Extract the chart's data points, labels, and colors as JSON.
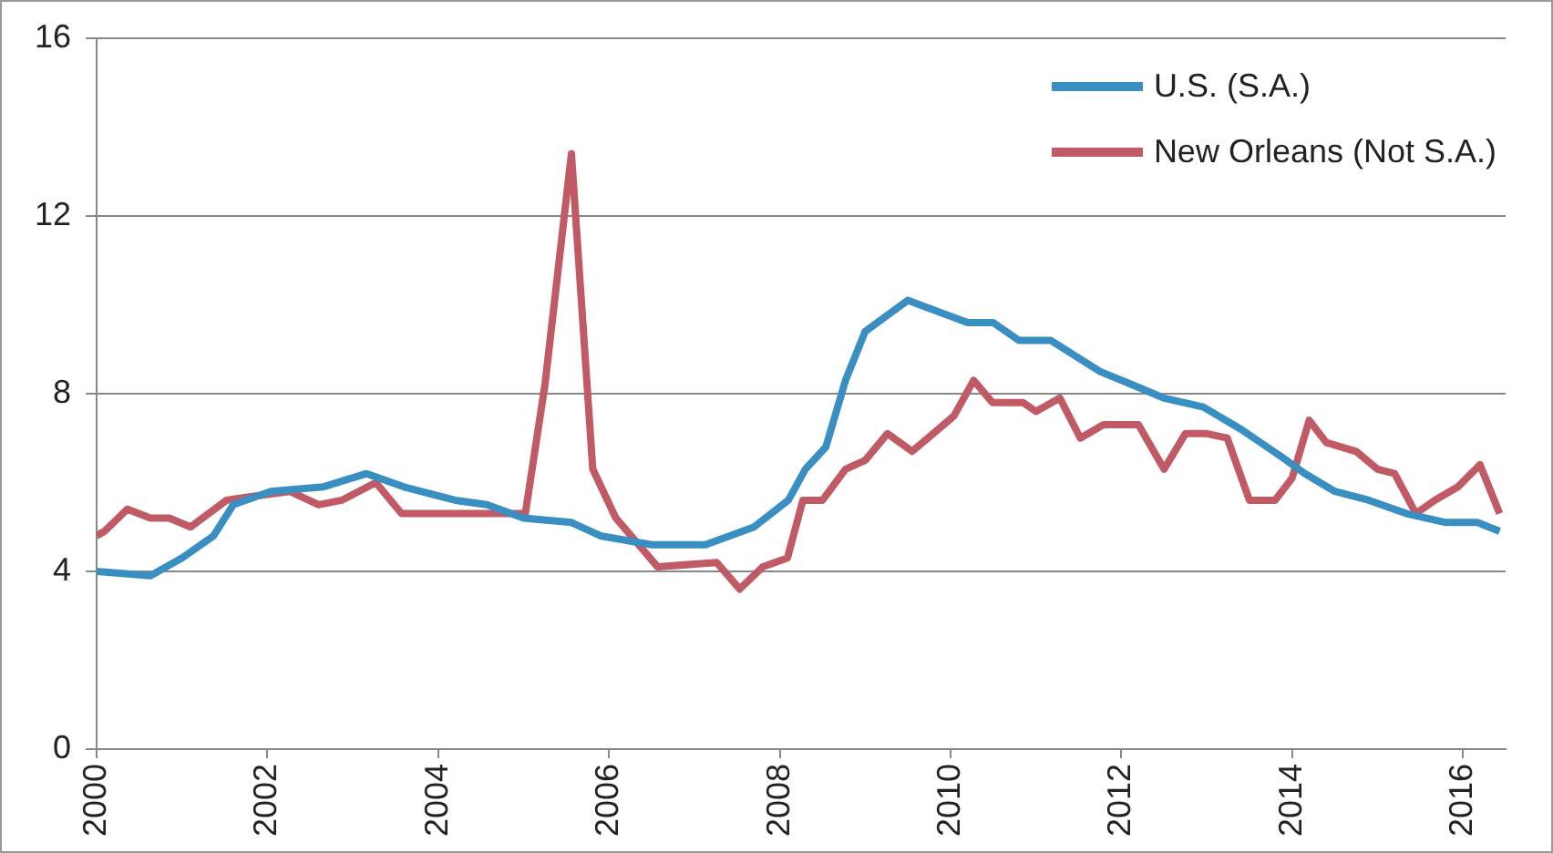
{
  "chart_data": {
    "type": "line",
    "xlim": [
      2000,
      2016.5
    ],
    "xticks": [
      2000,
      2002,
      2004,
      2006,
      2008,
      2010,
      2012,
      2014,
      2016
    ],
    "ylim": [
      0,
      16
    ],
    "yticks": [
      0,
      4,
      8,
      12,
      16
    ],
    "grid": "y",
    "legend": "top right",
    "marker": "none",
    "line_style": "solid",
    "series": [
      {
        "name": "U.S. (S.A.)",
        "color": "#3a8fc2",
        "x": [
          2000,
          2000.63,
          2001,
          2001.37,
          2001.6,
          2002.04,
          2002.65,
          2003.16,
          2003.6,
          2004.2,
          2004.57,
          2005,
          2005.56,
          2005.9,
          2006.5,
          2007.13,
          2007.7,
          2008.1,
          2008.3,
          2008.54,
          2008.77,
          2009,
          2009.5,
          2010.2,
          2010.5,
          2010.8,
          2011.17,
          2011.75,
          2012.13,
          2012.5,
          2012.96,
          2013.4,
          2013.86,
          2014.15,
          2014.5,
          2014.9,
          2015.34,
          2015.8,
          2016.17,
          2016.43
        ],
        "values": [
          4.0,
          3.9,
          4.3,
          4.8,
          5.5,
          5.8,
          5.9,
          6.2,
          5.9,
          5.6,
          5.5,
          5.2,
          5.1,
          4.8,
          4.6,
          4.6,
          5.0,
          5.6,
          6.3,
          6.8,
          8.3,
          9.4,
          10.1,
          9.6,
          9.6,
          9.2,
          9.2,
          8.5,
          8.2,
          7.9,
          7.7,
          7.2,
          6.6,
          6.2,
          5.8,
          5.6,
          5.3,
          5.1,
          5.1,
          4.9
        ]
      },
      {
        "name": "New Orleans (Not S.A.)",
        "color": "#c05a64",
        "x": [
          2000,
          2000.09,
          2000.36,
          2000.63,
          2000.85,
          2001.1,
          2001.52,
          2001.88,
          2002.26,
          2002.6,
          2002.87,
          2003.27,
          2003.57,
          2004.13,
          2004.57,
          2005.02,
          2005.25,
          2005.56,
          2005.81,
          2006.08,
          2006.57,
          2007.26,
          2007.53,
          2007.8,
          2008.09,
          2008.27,
          2008.5,
          2008.77,
          2009,
          2009.26,
          2009.55,
          2010.04,
          2010.27,
          2010.49,
          2010.85,
          2011,
          2011.28,
          2011.52,
          2011.79,
          2012.2,
          2012.5,
          2012.75,
          2013,
          2013.24,
          2013.5,
          2013.8,
          2014,
          2014.2,
          2014.4,
          2014.75,
          2015,
          2015.2,
          2015.45,
          2015.67,
          2015.94,
          2016.2,
          2016.43
        ],
        "values": [
          4.8,
          4.9,
          5.4,
          5.2,
          5.2,
          5.0,
          5.6,
          5.7,
          5.8,
          5.5,
          5.6,
          6.0,
          5.3,
          5.3,
          5.3,
          5.3,
          8.2,
          13.4,
          6.3,
          5.2,
          4.1,
          4.2,
          3.6,
          4.1,
          4.3,
          5.6,
          5.6,
          6.3,
          6.5,
          7.1,
          6.7,
          7.5,
          8.3,
          7.8,
          7.8,
          7.6,
          7.9,
          7.0,
          7.3,
          7.3,
          6.3,
          7.1,
          7.1,
          7.0,
          5.6,
          5.6,
          6.1,
          7.4,
          6.9,
          6.7,
          6.3,
          6.2,
          5.3,
          5.6,
          5.9,
          6.4,
          5.3
        ]
      }
    ]
  }
}
